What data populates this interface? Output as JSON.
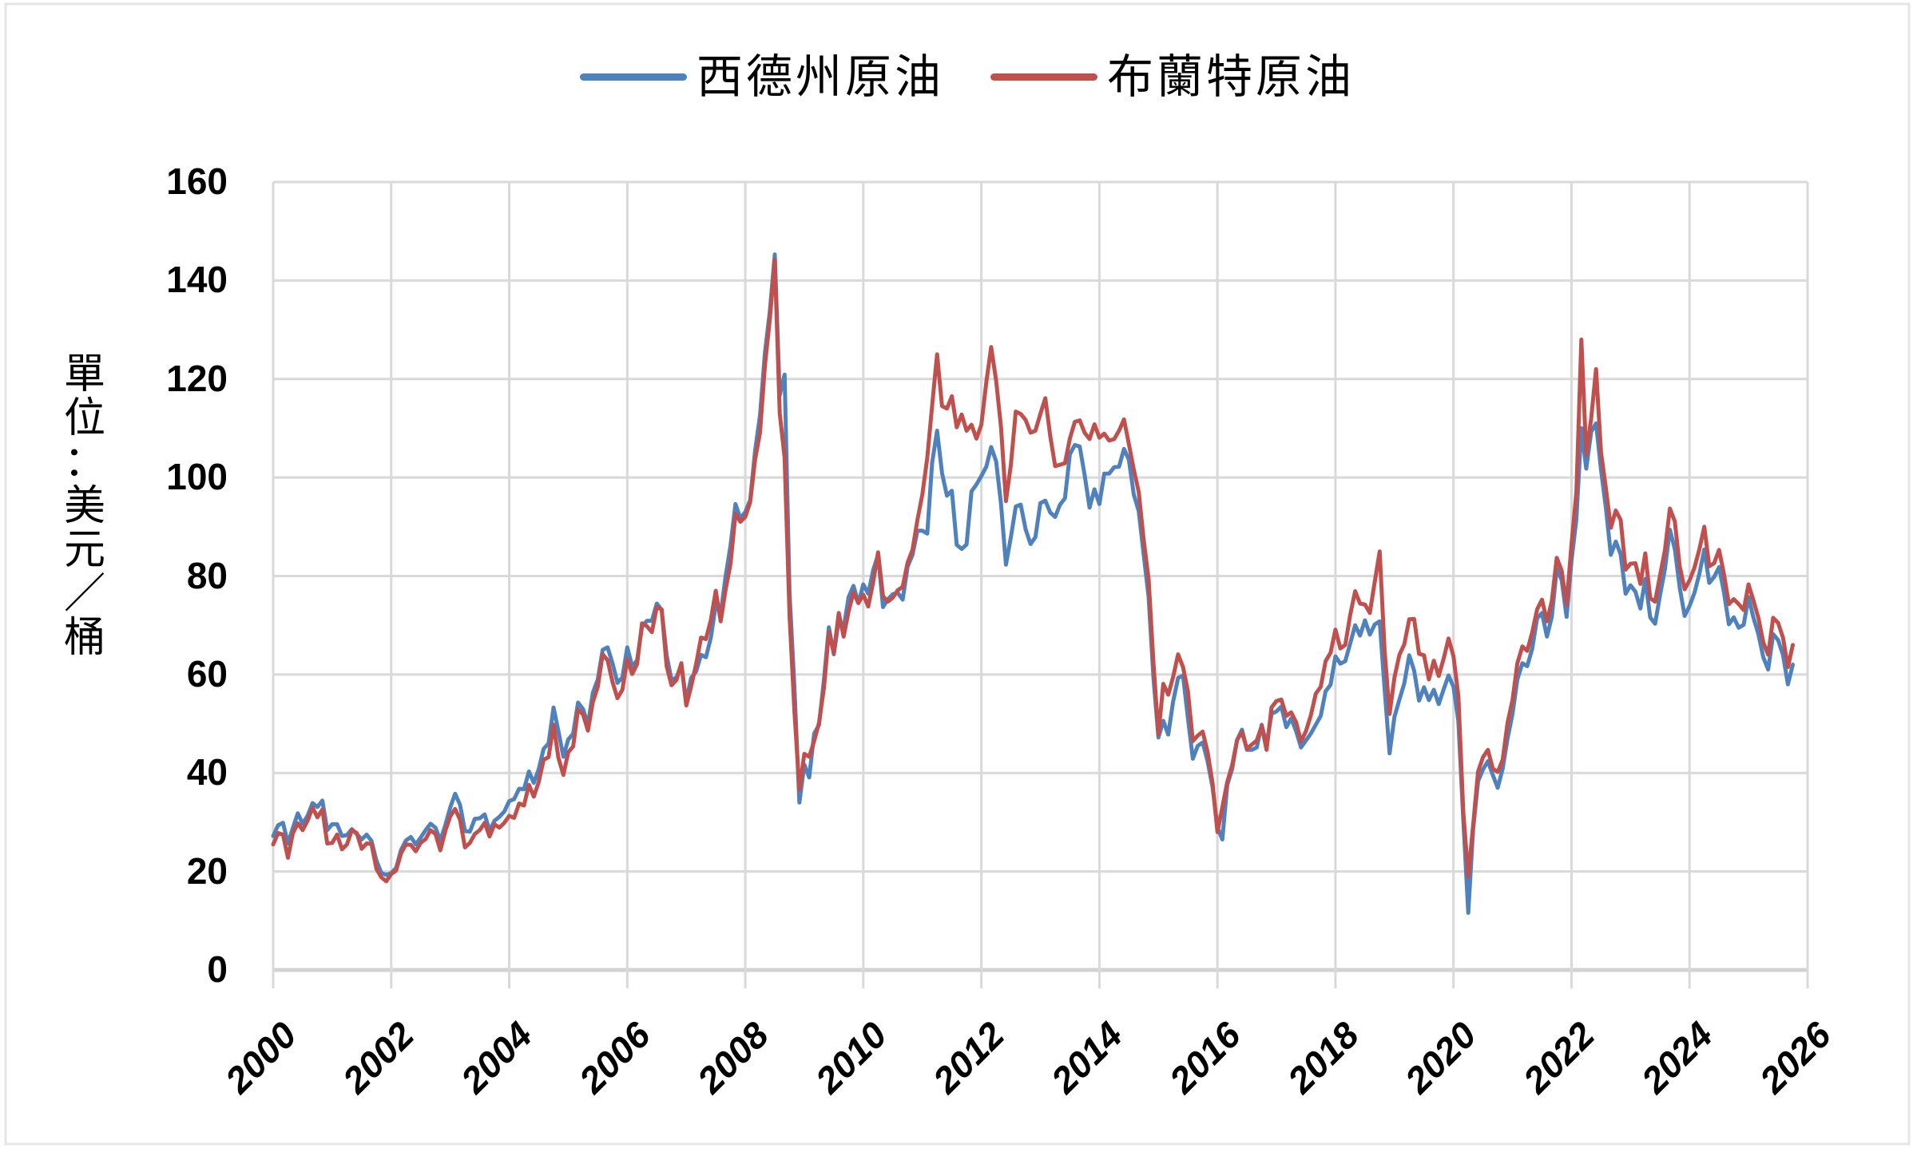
{
  "colors": {
    "wti_blue": "#4F81BD",
    "brent_red": "#C0504D",
    "gridline": "#D9D9D9",
    "axis_line": "#D2D2D2",
    "chart_border": "#E5E5E5",
    "background": "#FFFFFF"
  },
  "chart_data": {
    "type": "line",
    "title": "",
    "unit_label": "單位：美元／桶",
    "legend_position": "top",
    "grid": true,
    "xlim": [
      2000,
      2026
    ],
    "ylim": [
      0,
      160
    ],
    "x_ticks": [
      2000,
      2002,
      2004,
      2006,
      2008,
      2010,
      2012,
      2014,
      2016,
      2018,
      2020,
      2022,
      2024,
      2026
    ],
    "y_ticks": [
      0,
      20,
      40,
      60,
      80,
      100,
      120,
      140,
      160
    ],
    "x_start_year": 2000,
    "points_per_year": 12,
    "series": [
      {
        "name": "西德州原油",
        "color": "#4F81BD",
        "values": [
          27.2,
          29.4,
          29.9,
          25.7,
          28.8,
          31.8,
          29.7,
          31.3,
          33.9,
          33.1,
          34.4,
          28.4,
          29.6,
          29.6,
          27.2,
          27.4,
          28.6,
          27.6,
          26.5,
          27.5,
          26.2,
          22.2,
          19.7,
          19.3,
          19.7,
          20.7,
          24.4,
          26.3,
          27.0,
          25.5,
          26.9,
          28.4,
          29.7,
          28.9,
          26.3,
          29.4,
          33.0,
          35.8,
          33.5,
          28.2,
          28.1,
          30.7,
          30.8,
          31.6,
          28.3,
          30.3,
          31.1,
          32.2,
          34.3,
          34.7,
          36.8,
          36.7,
          40.3,
          38.0,
          40.8,
          44.9,
          46.0,
          53.3,
          48.5,
          43.3,
          46.8,
          48.0,
          54.3,
          53.0,
          49.8,
          56.3,
          59.0,
          65.0,
          65.5,
          62.3,
          58.3,
          59.4,
          65.5,
          61.6,
          62.9,
          69.7,
          70.9,
          70.9,
          74.4,
          73.1,
          63.9,
          58.9,
          59.4,
          62.0,
          54.6,
          59.3,
          60.6,
          64.0,
          63.5,
          67.5,
          74.2,
          72.4,
          79.9,
          86.2,
          94.6,
          91.7,
          93.0,
          95.4,
          105.5,
          112.6,
          125.4,
          133.9,
          145.3,
          116.7,
          120.9,
          76.6,
          57.3,
          34.0,
          41.7,
          39.1,
          48.0,
          49.8,
          59.0,
          69.6,
          64.1,
          71.0,
          69.4,
          75.7,
          78.0,
          74.5,
          78.3,
          76.4,
          81.2,
          84.3,
          73.7,
          75.3,
          76.3,
          76.6,
          75.2,
          81.9,
          84.3,
          89.2,
          89.2,
          88.6,
          103.0,
          109.5,
          100.9,
          96.3,
          97.3,
          86.3,
          85.5,
          86.4,
          97.2,
          98.6,
          100.3,
          102.2,
          106.2,
          103.3,
          94.7,
          82.3,
          87.9,
          94.1,
          94.5,
          89.5,
          86.5,
          87.9,
          94.8,
          95.3,
          92.9,
          92.0,
          94.5,
          95.8,
          104.7,
          106.6,
          106.3,
          100.5,
          93.9,
          97.6,
          94.6,
          100.8,
          100.8,
          102.1,
          102.2,
          105.8,
          103.6,
          96.5,
          93.2,
          84.4,
          75.8,
          59.3,
          47.2,
          50.6,
          47.8,
          54.5,
          59.3,
          59.8,
          51.2,
          42.9,
          45.5,
          46.2,
          42.4,
          37.2,
          29.0,
          26.5,
          37.6,
          40.8,
          46.7,
          48.8,
          44.7,
          44.7,
          45.2,
          49.8,
          45.7,
          52.0,
          52.5,
          53.5,
          49.3,
          51.1,
          48.5,
          45.2,
          46.6,
          48.0,
          49.8,
          51.6,
          56.6,
          57.9,
          63.7,
          62.2,
          62.7,
          66.3,
          70.0,
          67.9,
          71.0,
          68.1,
          70.2,
          70.8,
          57.0,
          44.0,
          51.4,
          54.9,
          58.2,
          63.9,
          60.8,
          54.7,
          57.4,
          54.8,
          56.9,
          54.0,
          57.0,
          59.8,
          57.5,
          50.5,
          30.5,
          11.6,
          28.6,
          38.3,
          40.7,
          42.4,
          39.6,
          37.0,
          40.9,
          47.0,
          52.0,
          59.0,
          62.3,
          61.7,
          65.2,
          71.4,
          72.5,
          67.7,
          71.7,
          81.5,
          79.2,
          71.7,
          83.2,
          91.6,
          110.0,
          101.8,
          109.3,
          111.0,
          101.6,
          93.7,
          84.3,
          87.0,
          84.4,
          76.4,
          78.1,
          76.8,
          73.4,
          79.4,
          71.6,
          70.3,
          76.1,
          81.4,
          89.4,
          85.5,
          77.7,
          71.9,
          73.9,
          76.6,
          80.4,
          85.4,
          78.6,
          79.8,
          81.8,
          76.7,
          70.2,
          71.6,
          69.5,
          70.1,
          75.7,
          71.5,
          68.2,
          63.5,
          61.0,
          68.2,
          67.0,
          64.0,
          58.0,
          62.0
        ]
      },
      {
        "name": "布蘭特原油",
        "color": "#C0504D",
        "values": [
          25.5,
          27.8,
          27.5,
          22.8,
          27.7,
          29.8,
          28.4,
          30.3,
          33.0,
          31.0,
          32.6,
          25.7,
          25.8,
          27.5,
          24.5,
          25.5,
          28.4,
          27.8,
          24.6,
          25.7,
          25.6,
          20.5,
          18.8,
          18.0,
          19.5,
          20.2,
          23.7,
          25.5,
          25.4,
          24.1,
          25.8,
          26.6,
          28.4,
          27.6,
          24.3,
          28.2,
          31.2,
          32.7,
          30.5,
          24.9,
          25.8,
          27.6,
          28.4,
          29.9,
          27.1,
          29.6,
          28.9,
          29.9,
          31.3,
          30.9,
          33.8,
          33.4,
          37.6,
          35.2,
          38.2,
          42.7,
          43.2,
          49.8,
          43.1,
          39.6,
          44.2,
          45.4,
          52.9,
          51.9,
          48.6,
          54.4,
          57.5,
          64.1,
          62.9,
          58.5,
          55.2,
          56.9,
          63.1,
          60.1,
          62.1,
          70.4,
          69.8,
          68.6,
          73.7,
          73.2,
          61.7,
          57.8,
          58.9,
          62.3,
          53.7,
          57.6,
          62.1,
          67.5,
          67.2,
          71.1,
          77.0,
          70.8,
          77.2,
          82.5,
          92.6,
          91.0,
          92.0,
          95.0,
          103.7,
          109.1,
          122.8,
          132.3,
          144.2,
          113.0,
          104.0,
          71.9,
          52.5,
          36.6,
          43.9,
          43.3,
          46.5,
          50.2,
          57.3,
          68.6,
          64.4,
          72.5,
          67.7,
          72.8,
          76.7,
          74.5,
          76.2,
          73.8,
          78.8,
          84.8,
          75.9,
          74.8,
          75.6,
          77.1,
          77.8,
          82.7,
          85.3,
          91.4,
          96.5,
          104.0,
          114.6,
          125.0,
          114.5,
          114.0,
          116.5,
          110.2,
          112.8,
          109.5,
          110.7,
          107.9,
          110.7,
          119.3,
          126.5,
          119.7,
          110.3,
          95.2,
          102.6,
          113.4,
          112.9,
          111.7,
          109.1,
          109.5,
          112.9,
          116.1,
          108.5,
          102.3,
          102.6,
          102.9,
          107.9,
          111.3,
          111.6,
          109.1,
          107.8,
          110.8,
          108.1,
          108.9,
          107.5,
          107.8,
          109.5,
          111.8,
          106.8,
          101.6,
          97.1,
          87.4,
          79.4,
          62.3,
          47.8,
          58.1,
          55.9,
          59.5,
          64.1,
          61.5,
          56.6,
          46.5,
          47.6,
          48.4,
          44.3,
          38.0,
          28.0,
          33.0,
          38.2,
          41.6,
          46.7,
          48.3,
          44.9,
          45.8,
          46.6,
          49.5,
          44.7,
          53.3,
          54.6,
          54.9,
          51.6,
          52.3,
          50.3,
          46.4,
          48.5,
          51.7,
          56.1,
          57.5,
          62.7,
          64.4,
          69.1,
          65.3,
          66.0,
          72.1,
          76.9,
          74.4,
          74.2,
          72.5,
          78.9,
          85.0,
          64.8,
          52.0,
          59.4,
          64.0,
          66.1,
          71.2,
          71.3,
          64.2,
          63.9,
          59.0,
          62.8,
          59.7,
          63.2,
          67.3,
          63.7,
          55.7,
          32.0,
          19.0,
          29.4,
          40.3,
          43.2,
          44.7,
          40.9,
          40.2,
          42.7,
          50.2,
          54.8,
          62.3,
          65.7,
          64.8,
          68.5,
          73.2,
          75.2,
          70.8,
          74.9,
          83.7,
          81.1,
          74.2,
          86.5,
          97.1,
          128.0,
          104.6,
          112.0,
          122.0,
          105.1,
          97.7,
          89.8,
          93.3,
          91.4,
          81.3,
          82.5,
          82.6,
          78.4,
          84.6,
          75.5,
          74.8,
          80.1,
          85.2,
          93.7,
          91.1,
          82.0,
          77.3,
          79.1,
          81.7,
          85.4,
          90.0,
          82.0,
          82.6,
          85.3,
          80.4,
          74.3,
          75.3,
          74.3,
          73.1,
          78.3,
          75.0,
          71.5,
          66.5,
          64.0,
          71.5,
          70.5,
          67.5,
          61.5,
          66.0
        ]
      }
    ]
  }
}
